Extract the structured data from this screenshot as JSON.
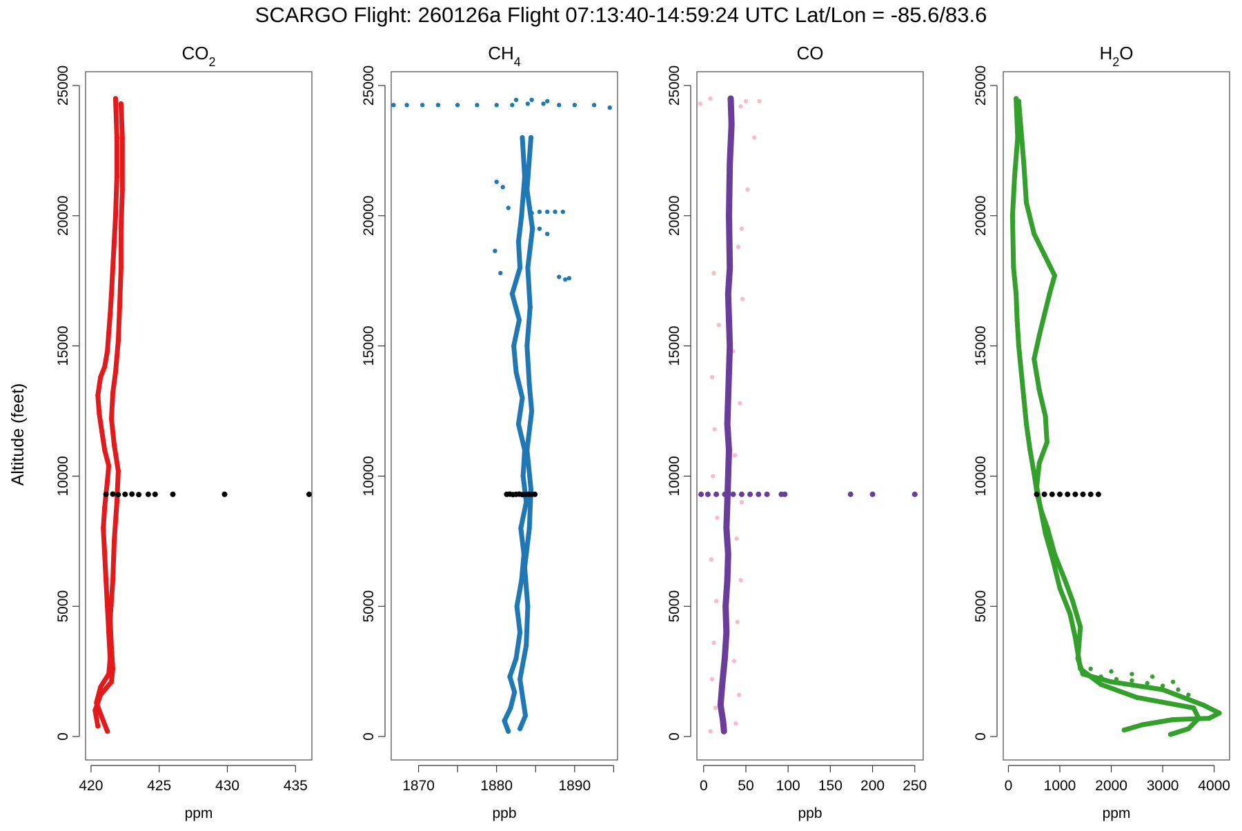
{
  "title": "SCARGO Flight: 260126a  Flight  07:13:40-14:59:24 UTC  Lat/Lon = -85.6/83.6",
  "ylabel": "Altitude (feet)",
  "ylim": [
    0,
    25000
  ],
  "yticks": [
    0,
    5000,
    10000,
    15000,
    20000,
    25000
  ],
  "colors": {
    "co2": "#e31a1c",
    "ch4": "#1f78b4",
    "co_raw": "#f9bccb",
    "co_smooth": "#6a3d9a",
    "h2o": "#33a02c",
    "level": "#000000"
  },
  "chart_data": [
    {
      "type": "scatter",
      "title": "CO2",
      "title_main": "CO",
      "title_sub": "2",
      "xlabel": "ppm",
      "xlim": [
        419.6,
        436.2
      ],
      "xticks": [
        420,
        425,
        430,
        435
      ],
      "xtick_labels": [
        "420",
        "425",
        "430",
        "435"
      ],
      "series": [
        {
          "name": "CO2 profile",
          "color": "#e31a1c",
          "x": [
            421.2,
            420.9,
            420.6,
            420.4,
            420.7,
            421.3,
            421.4,
            421.3,
            421.2,
            421.1,
            421.0,
            420.9,
            421.0,
            421.1,
            421.2,
            421.3,
            421.0,
            420.8,
            420.6,
            420.5,
            420.7,
            421.0,
            421.2,
            421.3,
            421.4,
            421.5,
            421.6,
            421.7,
            421.8,
            421.9,
            421.9,
            421.8
          ],
          "y": [
            200,
            600,
            1000,
            1300,
            1900,
            2400,
            3000,
            4000,
            5000,
            6000,
            7000,
            8000,
            8800,
            9300,
            9800,
            10400,
            11000,
            11700,
            12400,
            13100,
            13800,
            14200,
            14800,
            15500,
            16200,
            17000,
            18000,
            19000,
            20000,
            21500,
            23000,
            24500
          ]
        },
        {
          "name": "CO2 profile 2",
          "color": "#e31a1c",
          "x": [
            420.5,
            420.3,
            420.7,
            421.5,
            421.6,
            421.5,
            421.4,
            421.6,
            421.7,
            421.9,
            422.0,
            421.7,
            421.5,
            421.6,
            421.8,
            422.0,
            422.1,
            422.2,
            422.2,
            422.3,
            422.3,
            422.2
          ],
          "y": [
            400,
            1000,
            1600,
            2100,
            2600,
            3400,
            4500,
            6000,
            7500,
            9000,
            10200,
            11200,
            12200,
            13200,
            14000,
            15200,
            16500,
            18000,
            19500,
            21000,
            23000,
            24300
          ]
        },
        {
          "name": "Level leg",
          "color": "#000000",
          "x": [
            421.1,
            421.6,
            422.0,
            422.5,
            423.0,
            423.5,
            424.2,
            424.7,
            426.0,
            429.8,
            436.0
          ],
          "y": [
            9300,
            9310,
            9290,
            9300,
            9310,
            9290,
            9300,
            9300,
            9300,
            9300,
            9300
          ]
        }
      ]
    },
    {
      "type": "scatter",
      "title": "CH4",
      "title_main": "CH",
      "title_sub": "4",
      "xlabel": "ppb",
      "xlim": [
        1866.5,
        1895.5
      ],
      "xticks": [
        1870,
        1875,
        1880,
        1885,
        1890,
        1895
      ],
      "xtick_labels": [
        "1870",
        "",
        "1880",
        "",
        "1890",
        ""
      ],
      "series": [
        {
          "name": "CH4 profile",
          "color": "#1f78b4",
          "x": [
            1881.5,
            1881.0,
            1881.8,
            1882.3,
            1881.7,
            1882.5,
            1883.0,
            1882.6,
            1883.2,
            1883.5,
            1883.1,
            1883.8,
            1883.4,
            1883.6,
            1882.8,
            1883.3,
            1882.5,
            1882.2,
            1882.9,
            1882.0,
            1883.0,
            1882.8,
            1883.2,
            1883.6,
            1883.3
          ],
          "y": [
            200,
            600,
            1100,
            1700,
            2300,
            3000,
            4000,
            5000,
            6000,
            7000,
            8000,
            9000,
            10000,
            11000,
            12000,
            13000,
            14000,
            15000,
            16000,
            17000,
            18000,
            19000,
            20000,
            21500,
            23000
          ]
        },
        {
          "name": "CH4 profile 2",
          "color": "#1f78b4",
          "x": [
            1883.0,
            1883.7,
            1883.4,
            1883.0,
            1883.8,
            1884.0,
            1883.6,
            1884.2,
            1884.4,
            1883.9,
            1884.5,
            1884.2,
            1883.9,
            1884.3,
            1884.0,
            1884.6,
            1883.9,
            1884.4
          ],
          "y": [
            300,
            800,
            1400,
            2200,
            3500,
            5000,
            6500,
            8000,
            9500,
            11000,
            12500,
            13500,
            15000,
            16500,
            18000,
            19500,
            21000,
            23000
          ]
        },
        {
          "name": "CH4 top scatter",
          "color": "#1f78b4",
          "x": [
            1866.8,
            1868.5,
            1870.5,
            1872.5,
            1875.0,
            1877.5,
            1880.0,
            1882.0,
            1884.0,
            1886.0,
            1888.0,
            1890.0,
            1892.5,
            1894.5,
            1882.5,
            1884.5,
            1886.5
          ],
          "y": [
            24250,
            24250,
            24250,
            24250,
            24250,
            24250,
            24250,
            24250,
            24300,
            24300,
            24250,
            24250,
            24250,
            24150,
            24450,
            24450,
            24400
          ]
        },
        {
          "name": "CH4 side excursions",
          "color": "#1f78b4",
          "x": [
            1884.5,
            1885.5,
            1886.5,
            1887.5,
            1888.5,
            1884.5,
            1885.5,
            1886.5,
            1888.0,
            1888.8,
            1889.3,
            1880.0,
            1880.8,
            1881.5,
            1879.8,
            1880.5
          ],
          "y": [
            20100,
            20150,
            20150,
            20150,
            20150,
            19700,
            19500,
            19300,
            17650,
            17550,
            17600,
            21300,
            21100,
            20300,
            18650,
            17800
          ]
        },
        {
          "name": "Level leg",
          "color": "#000000",
          "x": [
            1881.3,
            1881.7,
            1882.1,
            1882.5,
            1882.9,
            1883.3,
            1883.7,
            1884.1,
            1884.5,
            1884.9
          ],
          "y": [
            9300,
            9310,
            9290,
            9300,
            9310,
            9290,
            9300,
            9300,
            9300,
            9300
          ]
        }
      ]
    },
    {
      "type": "scatter",
      "title": "CO",
      "title_main": "CO",
      "title_sub": "",
      "xlabel": "ppb",
      "xlim": [
        -8,
        260
      ],
      "xticks": [
        0,
        50,
        100,
        150,
        200,
        250
      ],
      "xtick_labels": [
        "0",
        "50",
        "100",
        "150",
        "200",
        "250"
      ],
      "series": [
        {
          "name": "CO raw",
          "color": "#f9bccb",
          "x": [
            8,
            38,
            14,
            42,
            10,
            36,
            12,
            40,
            15,
            44,
            9,
            39,
            16,
            45,
            11,
            37,
            13,
            43,
            10,
            35,
            18,
            46,
            12,
            41,
            -4,
            50,
            44,
            66,
            52,
            45,
            8,
            60
          ],
          "y": [
            200,
            500,
            1100,
            1600,
            2200,
            2900,
            3600,
            4400,
            5200,
            6000,
            6800,
            7600,
            8400,
            9000,
            10000,
            10800,
            11800,
            12800,
            13800,
            14800,
            15800,
            16800,
            17800,
            18800,
            24300,
            24400,
            24200,
            24400,
            21000,
            19500,
            24500,
            23000
          ]
        },
        {
          "name": "CO smoothed",
          "color": "#6a3d9a",
          "x": [
            24,
            23,
            20,
            22,
            25,
            27,
            26,
            28,
            29,
            27,
            28,
            29,
            30,
            28,
            29,
            30,
            31,
            30,
            29,
            31,
            30,
            31,
            33,
            32
          ],
          "y": [
            200,
            600,
            1200,
            2000,
            3000,
            4000,
            5000,
            6000,
            7000,
            8000,
            9000,
            10000,
            11000,
            12000,
            13000,
            14000,
            15000,
            16000,
            17000,
            18000,
            20000,
            22000,
            23500,
            24500
          ]
        },
        {
          "name": "Level leg",
          "color": "#6a3d9a",
          "x": [
            -3,
            5,
            15,
            25,
            35,
            45,
            55,
            65,
            75,
            92,
            96,
            174,
            200,
            250
          ],
          "y": [
            9300,
            9300,
            9300,
            9300,
            9300,
            9300,
            9300,
            9300,
            9300,
            9300,
            9300,
            9300,
            9300,
            9300
          ]
        }
      ]
    },
    {
      "type": "scatter",
      "title": "H2O",
      "title_main": "H",
      "title_sub": "2",
      "title_suffix": "O",
      "xlabel": "ppm",
      "xlim": [
        -100,
        4300
      ],
      "xticks": [
        0,
        1000,
        2000,
        3000,
        4000
      ],
      "xtick_labels": [
        "0",
        "1000",
        "2000",
        "3000",
        "4000"
      ],
      "series": [
        {
          "name": "H2O ascent",
          "color": "#33a02c",
          "x": [
            2250,
            2600,
            3200,
            3900,
            4100,
            3800,
            3000,
            2000,
            1450,
            1350,
            1400,
            1250,
            1100,
            900,
            760,
            650,
            560,
            500,
            420,
            350,
            300,
            250,
            200,
            170,
            150,
            100,
            80,
            120,
            180,
            150
          ],
          "y": [
            250,
            450,
            650,
            700,
            900,
            1200,
            1800,
            2100,
            2400,
            3000,
            4200,
            5200,
            6000,
            7000,
            8000,
            8600,
            9300,
            10100,
            11000,
            12000,
            13000,
            14000,
            15000,
            16000,
            17000,
            18000,
            20000,
            21500,
            23000,
            24500
          ]
        },
        {
          "name": "H2O descent",
          "color": "#33a02c",
          "x": [
            3150,
            3500,
            3700,
            3600,
            2500,
            1800,
            1400,
            1300,
            1200,
            1000,
            850,
            720,
            620,
            550,
            600,
            750,
            720,
            600,
            500,
            600,
            700,
            800,
            900,
            700,
            500,
            350,
            300,
            250,
            200
          ],
          "y": [
            80,
            300,
            700,
            1100,
            1500,
            2000,
            2600,
            3800,
            4700,
            5700,
            6900,
            7800,
            8800,
            9600,
            10500,
            11300,
            12300,
            13300,
            14500,
            15400,
            16200,
            17000,
            17700,
            18500,
            19300,
            20500,
            22000,
            23200,
            24400
          ]
        },
        {
          "name": "H2O dotted",
          "color": "#33a02c",
          "x": [
            1500,
            1800,
            2100,
            2400,
            2700,
            3000,
            3300,
            3500,
            1600,
            2000,
            2400,
            2800,
            3200
          ],
          "y": [
            2400,
            2300,
            2200,
            2150,
            2050,
            1950,
            1800,
            1600,
            2600,
            2500,
            2400,
            2300,
            2100
          ]
        },
        {
          "name": "Level leg",
          "color": "#000000",
          "x": [
            550,
            700,
            850,
            1000,
            1150,
            1300,
            1450,
            1600,
            1750
          ],
          "y": [
            9300,
            9300,
            9300,
            9300,
            9300,
            9300,
            9300,
            9300,
            9300
          ]
        }
      ]
    }
  ]
}
